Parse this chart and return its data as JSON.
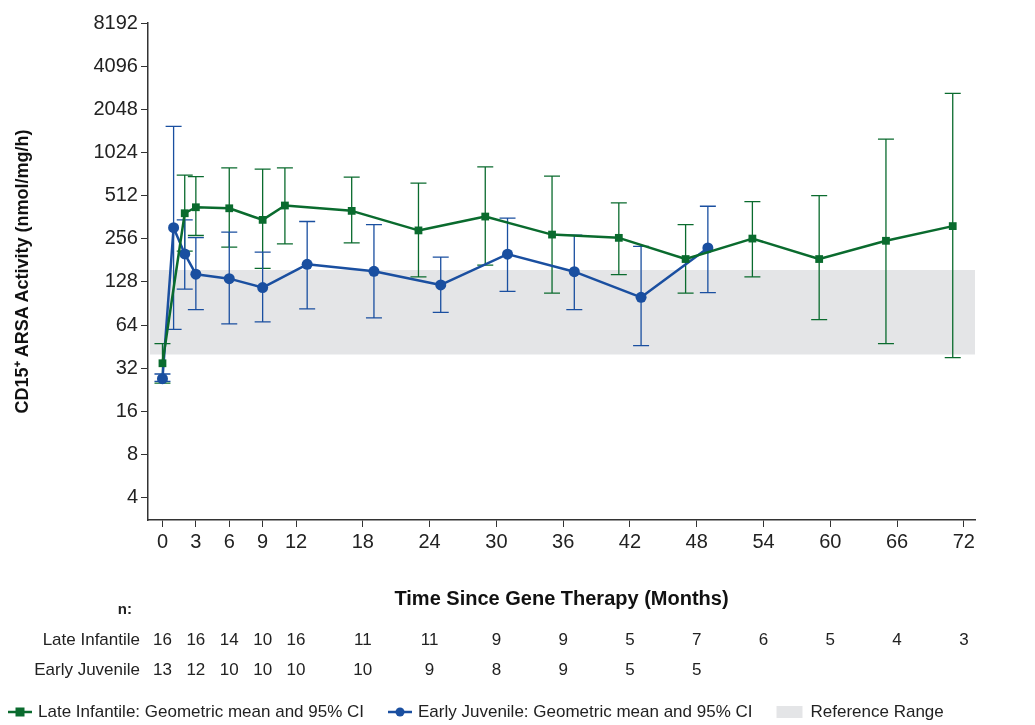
{
  "chart_data": {
    "type": "line",
    "xlabel": "Time Since Gene Therapy (Months)",
    "ylabel": "CD15⁺ ARSA Activity (nmol/mg/h)",
    "log": "y",
    "xlim": [
      -1.3,
      73
    ],
    "xticks": [
      0,
      3,
      6,
      9,
      12,
      18,
      24,
      30,
      36,
      42,
      48,
      54,
      60,
      66,
      72
    ],
    "ylim": [
      2.8,
      8192
    ],
    "yticks": [
      4,
      8,
      16,
      32,
      64,
      128,
      256,
      512,
      1024,
      2048,
      4096,
      8192
    ],
    "legend": "bottom",
    "line_style": "solid",
    "series": [
      {
        "name": "Late Infantile: Geometric mean and 95% CI",
        "color": "#0a6b2e",
        "marker": "square",
        "x": [
          0,
          2,
          3,
          6,
          9,
          11,
          17,
          23,
          29,
          35,
          41,
          47,
          53,
          59,
          65,
          71
        ],
        "values": [
          34.7,
          386,
          425,
          418,
          347,
          437,
          401,
          293,
          366,
          274,
          260,
          185,
          257,
          185,
          248,
          314
        ],
        "errors": [
          [
            25.2,
            47.6
          ],
          [
            210,
            712
          ],
          [
            270,
            696
          ],
          [
            224,
            800
          ],
          [
            159,
            783
          ],
          [
            236,
            800
          ],
          [
            240,
            689
          ],
          [
            139,
            627
          ],
          [
            168,
            812
          ],
          [
            107,
            700
          ],
          [
            144,
            456
          ],
          [
            107,
            322
          ],
          [
            139,
            465
          ],
          [
            70,
            512
          ],
          [
            47.6,
            1270
          ],
          [
            38,
            2650
          ]
        ]
      },
      {
        "name": "Early Juvenile: Geometric mean and 95% CI",
        "color": "#1a4fa0",
        "marker": "circle",
        "x": [
          0,
          1,
          2,
          3,
          6,
          9,
          13,
          19,
          25,
          31,
          37,
          43,
          49
        ],
        "values": [
          27.1,
          306,
          201,
          145,
          135,
          117,
          170,
          152,
          122,
          200,
          151,
          100,
          221
        ],
        "errors": [
          [
            25.9,
            29.2
          ],
          [
            59.7,
            1559
          ],
          [
            114,
            347
          ],
          [
            82,
            261
          ],
          [
            65.4,
            285
          ],
          [
            67.5,
            207
          ],
          [
            83,
            338
          ],
          [
            72,
            321
          ],
          [
            78.6,
            191
          ],
          [
            110,
            357
          ],
          [
            82,
            271
          ],
          [
            46.1,
            227
          ],
          [
            108,
            432
          ]
        ]
      }
    ],
    "bands": [
      {
        "axis": "y",
        "from": 40,
        "to": 155,
        "label": "Reference Range",
        "color": "#e4e5e7"
      }
    ],
    "annotations": [
      "n:",
      "Late Infantile",
      "16",
      "16",
      "14",
      "10",
      "16",
      "11",
      "11",
      "9",
      "9",
      "5",
      "7",
      "6",
      "5",
      "4",
      "3",
      "Early Juvenile",
      "13",
      "12",
      "10",
      "10",
      "10",
      "10",
      "9",
      "8",
      "9",
      "5",
      "5"
    ]
  }
}
